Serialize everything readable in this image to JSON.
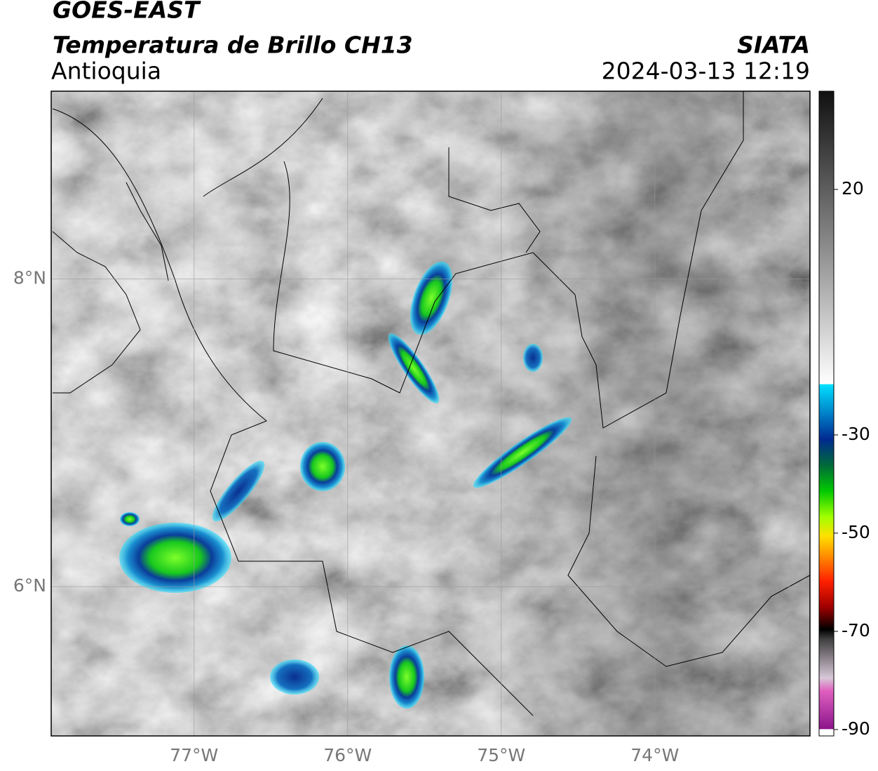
{
  "header": {
    "title": "GOES-EAST",
    "subtitle": "Temperatura de Brillo CH13",
    "region": "Antioquia",
    "source": "SIATA",
    "datetime": "2024-03-13 12:19"
  },
  "map": {
    "lonlim": [
      -77.93,
      -72.99
    ],
    "latlim": [
      5.03,
      9.22
    ],
    "lonticks": [
      {
        "value": -77,
        "label": "77°W"
      },
      {
        "value": -76,
        "label": "76°W"
      },
      {
        "value": -75,
        "label": "75°W"
      },
      {
        "value": -74,
        "label": "74°W"
      }
    ],
    "latticks": [
      {
        "value": 8,
        "label": "8°N"
      },
      {
        "value": 6,
        "label": "6°N"
      }
    ],
    "grid": true
  },
  "colorbar": {
    "lim": [
      -91.3,
      40
    ],
    "ticks": [
      20,
      -30,
      -50,
      -70,
      -90
    ]
  }
}
